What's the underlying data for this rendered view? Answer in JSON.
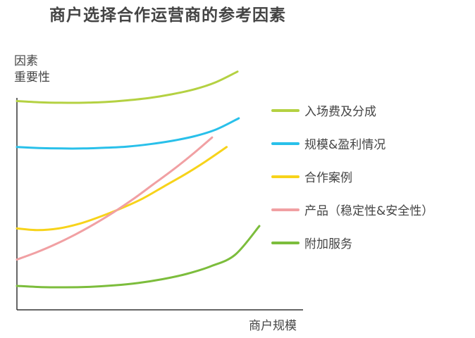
{
  "chart_data": {
    "type": "line",
    "title": "商户选择合作运营商的参考因素",
    "ylabel_lines": [
      "因素",
      "重要性"
    ],
    "xlabel": "商户规模",
    "xlim": [
      0,
      100
    ],
    "ylim": [
      0,
      100
    ],
    "grid": false,
    "legend_position": "right",
    "series": [
      {
        "name": "入场费及分成",
        "color": "#b4d142",
        "x": [
          0,
          10,
          20,
          30,
          40,
          50,
          60,
          70,
          80,
          90,
          100
        ],
        "y": [
          87.2,
          86.7,
          86.5,
          86.5,
          86.8,
          87.5,
          88.5,
          90.0,
          92.0,
          95.0,
          99.5
        ]
      },
      {
        "name": "规模&盈利情况",
        "color": "#29c0ea",
        "x": [
          0,
          10,
          20,
          30,
          40,
          50,
          60,
          70,
          80,
          90,
          100
        ],
        "y": [
          68.0,
          67.6,
          67.4,
          67.4,
          67.7,
          68.2,
          69.2,
          70.6,
          72.5,
          75.4,
          80.0
        ]
      },
      {
        "name": "合作案例",
        "color": "#f7d31a",
        "x": [
          0,
          10,
          20,
          30,
          40,
          50,
          60,
          70,
          80,
          90,
          100
        ],
        "y": [
          34.0,
          33.3,
          34.0,
          36.0,
          39.0,
          42.5,
          46.5,
          51.5,
          56.5,
          62.0,
          68.0
        ]
      },
      {
        "name": "产品（稳定性&安全性）",
        "color": "#f1a0a3",
        "x": [
          0,
          10,
          20,
          30,
          40,
          50,
          60,
          70,
          80,
          90,
          100
        ],
        "y": [
          21.0,
          24.0,
          27.5,
          31.5,
          36.0,
          41.0,
          46.5,
          52.5,
          58.5,
          65.0,
          72.0
        ]
      },
      {
        "name": "附加服务",
        "color": "#7cbd3c",
        "x": [
          0,
          10,
          20,
          30,
          40,
          50,
          60,
          70,
          80,
          90,
          100
        ],
        "y": [
          10.0,
          9.5,
          9.4,
          9.6,
          10.2,
          11.2,
          12.8,
          15.0,
          18.2,
          23.0,
          35.0
        ]
      }
    ]
  }
}
